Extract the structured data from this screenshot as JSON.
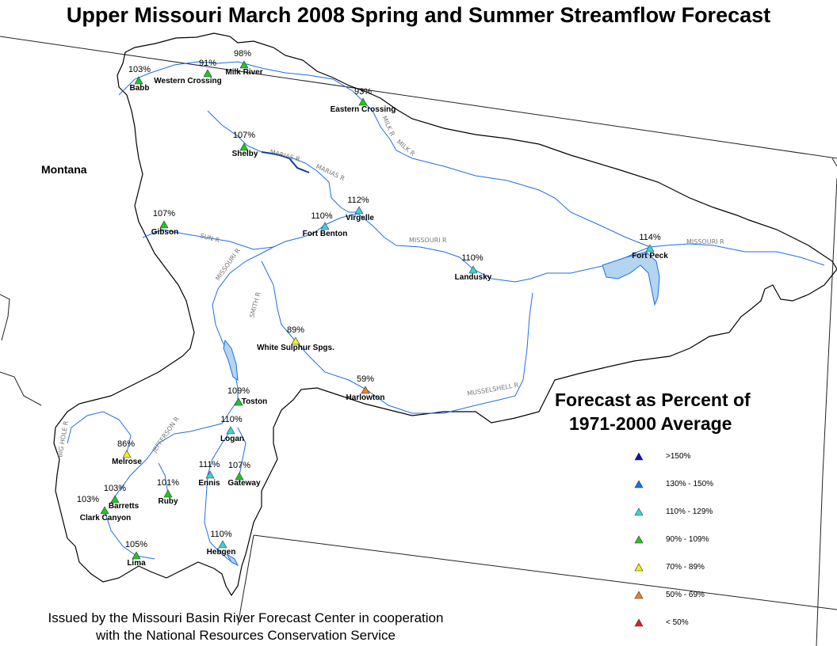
{
  "title": "Upper Missouri March 2008 Spring and Summer Streamflow Forecast",
  "state_label": "Montana",
  "legend": {
    "title_line1": "Forecast as Percent of",
    "title_line2": "1971-2000 Average",
    "items": [
      {
        "label": ">150%",
        "color": "#0a14b4"
      },
      {
        "label": "130% - 150%",
        "color": "#1e6ee6"
      },
      {
        "label": "110% - 129%",
        "color": "#3cd2dc"
      },
      {
        "label": "90% - 109%",
        "color": "#1ec81e"
      },
      {
        "label": "70% - 89%",
        "color": "#f0f01e"
      },
      {
        "label": "50% - 69%",
        "color": "#e68228"
      },
      {
        "label": "< 50%",
        "color": "#e61e1e"
      }
    ]
  },
  "footer": {
    "line1": "Issued by the Missouri Basin River Forecast Center in cooperation",
    "line2": "with the National Resources Conservation Service"
  },
  "river_labels": [
    "MILK R",
    "MILK R",
    "MARIAS R",
    "MARIAS R",
    "MISSOURI R",
    "MISSOURI R",
    "MISSOURI R",
    "SUN R",
    "SMITH R",
    "MUSSELSHELL R",
    "JEFFERSON R",
    "BIG HOLE R"
  ],
  "stations": [
    {
      "name": "Babb",
      "pct": "103%",
      "color": "#1ec81e"
    },
    {
      "name": "Western Crossing",
      "pct": "91%",
      "color": "#1ec81e"
    },
    {
      "name": "Milk River",
      "pct": "98%",
      "color": "#1ec81e"
    },
    {
      "name": "Eastern Crossing",
      "pct": "93%",
      "color": "#1ec81e"
    },
    {
      "name": "Shelby",
      "pct": "107%",
      "color": "#1ec81e"
    },
    {
      "name": "Virgelle",
      "pct": "112%",
      "color": "#3cd2dc"
    },
    {
      "name": "Fort Benton",
      "pct": "110%",
      "color": "#3cd2dc"
    },
    {
      "name": "Gibson",
      "pct": "107%",
      "color": "#1ec81e"
    },
    {
      "name": "Landusky",
      "pct": "110%",
      "color": "#3cd2dc"
    },
    {
      "name": "Fort Peck",
      "pct": "114%",
      "color": "#3cd2dc"
    },
    {
      "name": "White Sulphur Spgs.",
      "pct": "89%",
      "color": "#f0f01e"
    },
    {
      "name": "Harlowton",
      "pct": "59%",
      "color": "#e68228"
    },
    {
      "name": "Toston",
      "pct": "109%",
      "color": "#1ec81e"
    },
    {
      "name": "Logan",
      "pct": "110%",
      "color": "#3cd2dc"
    },
    {
      "name": "Melrose",
      "pct": "86%",
      "color": "#f0f01e"
    },
    {
      "name": "Ennis",
      "pct": "111%",
      "color": "#3cd2dc"
    },
    {
      "name": "Gateway",
      "pct": "107%",
      "color": "#1ec81e"
    },
    {
      "name": "Ruby",
      "pct": "101%",
      "color": "#1ec81e"
    },
    {
      "name": "Barretts",
      "pct": "103%",
      "color": "#1ec81e"
    },
    {
      "name": "Clark Canyon",
      "pct": "103%",
      "color": "#1ec81e"
    },
    {
      "name": "Lima",
      "pct": "105%",
      "color": "#1ec81e"
    },
    {
      "name": "Hebgen",
      "pct": "110%",
      "color": "#3cd2dc"
    }
  ]
}
